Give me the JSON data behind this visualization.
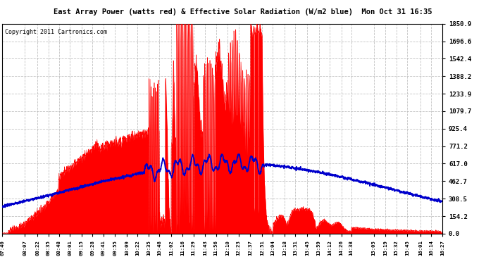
{
  "title": "East Array Power (watts red) & Effective Solar Radiation (W/m2 blue)  Mon Oct 31 16:35",
  "copyright": "Copyright 2011 Cartronics.com",
  "y_ticks": [
    0.0,
    154.2,
    308.5,
    462.7,
    617.0,
    771.2,
    925.4,
    1079.7,
    1233.9,
    1388.2,
    1542.4,
    1696.6,
    1850.9
  ],
  "y_max": 1850.9,
  "y_min": 0.0,
  "x_labels": [
    "07:40",
    "08:07",
    "08:22",
    "08:35",
    "08:48",
    "09:01",
    "09:15",
    "09:28",
    "09:41",
    "09:55",
    "10:09",
    "10:22",
    "10:35",
    "10:48",
    "11:02",
    "11:16",
    "11:29",
    "11:43",
    "11:56",
    "12:10",
    "12:23",
    "12:37",
    "12:51",
    "13:04",
    "13:18",
    "13:31",
    "13:45",
    "13:59",
    "14:12",
    "14:26",
    "14:38",
    "15:05",
    "15:19",
    "15:32",
    "15:45",
    "16:01",
    "16:14",
    "16:27"
  ],
  "bg_color": "#ffffff",
  "plot_bg_color": "#ffffff",
  "grid_color": "#bbbbbb",
  "red_color": "#ff0000",
  "blue_color": "#0000cc",
  "title_bg": "#cccccc",
  "title_color": "#000000"
}
